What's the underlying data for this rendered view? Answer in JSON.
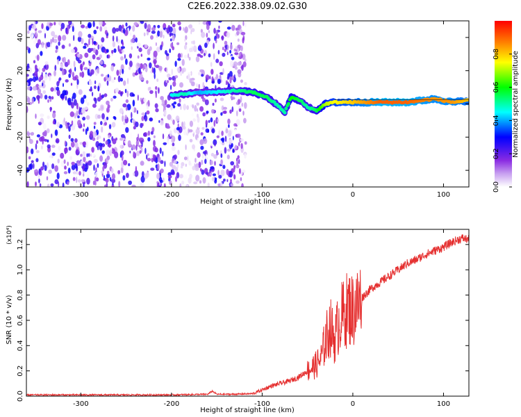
{
  "page_title": "C2E6.2022.338.09.02.G30",
  "chart_data": [
    {
      "type": "heatmap",
      "title": "C2E6.2022.338.09.02.G30",
      "xlabel": "Height of straight line (km)",
      "ylabel": "Frequency (Hz)",
      "xlim": [
        -360,
        128
      ],
      "ylim": [
        -50,
        50
      ],
      "xticks": [
        -300,
        -200,
        -100,
        0,
        100
      ],
      "yticks": [
        -40,
        -20,
        0,
        20,
        40
      ],
      "grid": false,
      "colorbar": {
        "label": "Normalized spectral amplitude",
        "range": [
          0,
          1
        ],
        "ticks": [
          0.0,
          0.2,
          0.4,
          0.6,
          0.8
        ],
        "colormap": [
          "#ffffff",
          "#8a2be2",
          "#0000ff",
          "#00ffff",
          "#00ff00",
          "#ffff00",
          "#ff8000",
          "#ff0000"
        ]
      },
      "noise_region": {
        "x_range": [
          -360,
          -118
        ],
        "y_range": [
          -50,
          50
        ],
        "amplitude": 0.3
      },
      "ridge": [
        {
          "x": -200,
          "y": 5,
          "a": 0.45
        },
        {
          "x": -185,
          "y": 6,
          "a": 0.5
        },
        {
          "x": -170,
          "y": 7,
          "a": 0.4
        },
        {
          "x": -150,
          "y": 7,
          "a": 0.45
        },
        {
          "x": -130,
          "y": 8,
          "a": 0.5
        },
        {
          "x": -110,
          "y": 7,
          "a": 0.55
        },
        {
          "x": -95,
          "y": 4,
          "a": 0.55
        },
        {
          "x": -85,
          "y": 0,
          "a": 0.5
        },
        {
          "x": -75,
          "y": -5,
          "a": 0.5
        },
        {
          "x": -68,
          "y": 4,
          "a": 0.6
        },
        {
          "x": -58,
          "y": 2,
          "a": 0.55
        },
        {
          "x": -50,
          "y": -2,
          "a": 0.5
        },
        {
          "x": -40,
          "y": -4,
          "a": 0.55
        },
        {
          "x": -30,
          "y": 0,
          "a": 0.7
        },
        {
          "x": -20,
          "y": 1,
          "a": 0.75
        },
        {
          "x": 0,
          "y": 1,
          "a": 0.8
        },
        {
          "x": 30,
          "y": 1,
          "a": 0.9
        },
        {
          "x": 60,
          "y": 1,
          "a": 0.9
        },
        {
          "x": 90,
          "y": 3,
          "a": 0.85
        },
        {
          "x": 110,
          "y": 1,
          "a": 0.85
        },
        {
          "x": 128,
          "y": 2,
          "a": 0.8
        }
      ]
    },
    {
      "type": "line",
      "xlabel": "Height of straight line (km)",
      "ylabel": "SNR (10 * v/v)",
      "y_multiplier": "(x10⁴)",
      "xlim": [
        -360,
        128
      ],
      "ylim": [
        0,
        1.32
      ],
      "xticks": [
        -300,
        -200,
        -100,
        0,
        100
      ],
      "yticks": [
        0.0,
        0.2,
        0.4,
        0.6,
        0.8,
        1.0,
        1.2
      ],
      "grid": false,
      "series": [
        {
          "color": "#e53030",
          "x": [
            -360,
            -300,
            -250,
            -200,
            -160,
            -155,
            -150,
            -130,
            -110,
            -100,
            -90,
            -80,
            -70,
            -60,
            -50,
            -40,
            -35,
            -30,
            -25,
            -20,
            -15,
            -10,
            -5,
            0,
            5,
            10,
            20,
            30,
            40,
            50,
            60,
            70,
            80,
            90,
            100,
            110,
            120,
            128
          ],
          "y": [
            0.01,
            0.01,
            0.01,
            0.01,
            0.015,
            0.04,
            0.015,
            0.015,
            0.02,
            0.05,
            0.08,
            0.1,
            0.12,
            0.15,
            0.2,
            0.25,
            0.3,
            0.45,
            0.55,
            0.45,
            0.6,
            0.65,
            0.7,
            0.68,
            0.72,
            0.78,
            0.85,
            0.9,
            0.95,
            1.0,
            1.05,
            1.08,
            1.12,
            1.15,
            1.18,
            1.22,
            1.25,
            1.24
          ]
        }
      ]
    }
  ]
}
